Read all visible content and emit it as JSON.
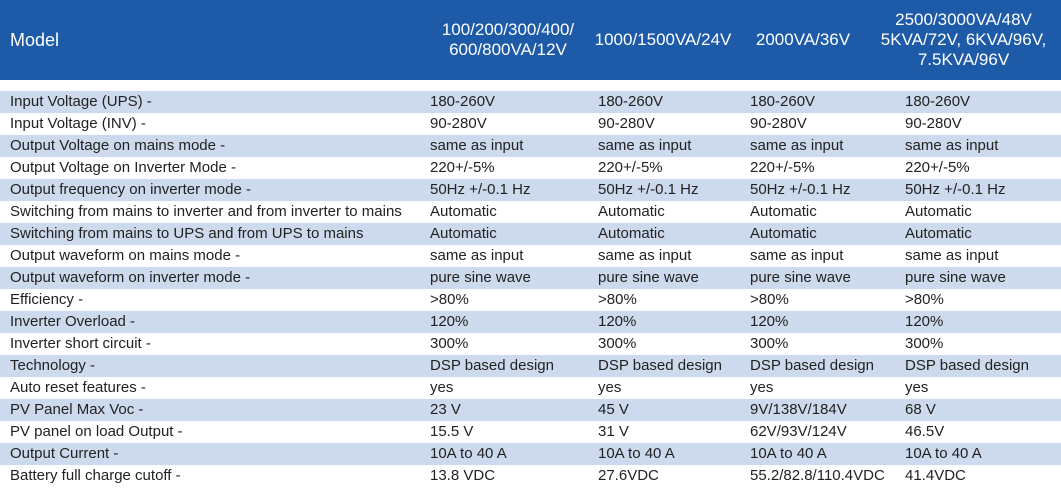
{
  "header": {
    "model_label": "Model",
    "columns": [
      [
        "100/200/300/400/",
        "600/800VA/12V"
      ],
      [
        "1000/1500VA/24V"
      ],
      [
        "2000VA/36V"
      ],
      [
        "2500/3000VA/48V",
        "5KVA/72V, 6KVA/96V,",
        "7.5KVA/96V"
      ]
    ]
  },
  "colors": {
    "header_bg": "#1d5aa8",
    "stripe": "#cdd9ed"
  },
  "rows": [
    [
      "Input Voltage (UPS)  -",
      "180-260V",
      "180-260V",
      "180-260V",
      "180-260V"
    ],
    [
      "Input Voltage (INV) -",
      "90-280V",
      "90-280V",
      "90-280V",
      "90-280V"
    ],
    [
      "Output Voltage on mains mode -",
      "same as input",
      "same as input",
      "same as input",
      "same as input"
    ],
    [
      "Output Voltage on Inverter Mode -",
      "220+/-5%",
      "220+/-5%",
      "220+/-5%",
      "220+/-5%"
    ],
    [
      "Output frequency on inverter mode -",
      "50Hz +/-0.1 Hz",
      "50Hz +/-0.1 Hz",
      "50Hz +/-0.1 Hz",
      "50Hz +/-0.1 Hz"
    ],
    [
      "Switching from mains to inverter and from inverter to mains",
      "Automatic",
      "Automatic",
      "Automatic",
      "Automatic"
    ],
    [
      "Switching from mains to UPS and from UPS to mains",
      "Automatic",
      "Automatic",
      "Automatic",
      "Automatic"
    ],
    [
      "Output waveform on mains mode -",
      "same as input",
      "same as input",
      "same as input",
      "same as input"
    ],
    [
      "Output waveform on inverter mode -",
      "pure sine wave",
      "pure sine wave",
      "pure sine wave",
      "pure sine wave"
    ],
    [
      "Efficiency -",
      ">80%",
      ">80%",
      ">80%",
      ">80%"
    ],
    [
      "Inverter Overload -",
      "120%",
      "120%",
      "120%",
      "120%"
    ],
    [
      "Inverter short circuit -",
      "300%",
      "300%",
      "300%",
      "300%"
    ],
    [
      "Technology -",
      "DSP based design",
      "DSP based design",
      "DSP based design",
      "DSP based design"
    ],
    [
      "Auto reset features -",
      "yes",
      "yes",
      "yes",
      "yes"
    ],
    [
      "PV Panel Max Voc -",
      "23 V",
      "45 V",
      "9V/138V/184V",
      "68 V"
    ],
    [
      "PV panel on load Output -",
      "15.5 V",
      "31 V",
      "62V/93V/124V",
      "46.5V"
    ],
    [
      "Output Current -",
      "10A to 40 A",
      "10A to 40 A",
      "10A to 40 A",
      "10A to 40 A"
    ],
    [
      "Battery full charge cutoff -",
      "13.8 VDC",
      "27.6VDC",
      "55.2/82.8/110.4VDC",
      "41.4VDC"
    ]
  ]
}
